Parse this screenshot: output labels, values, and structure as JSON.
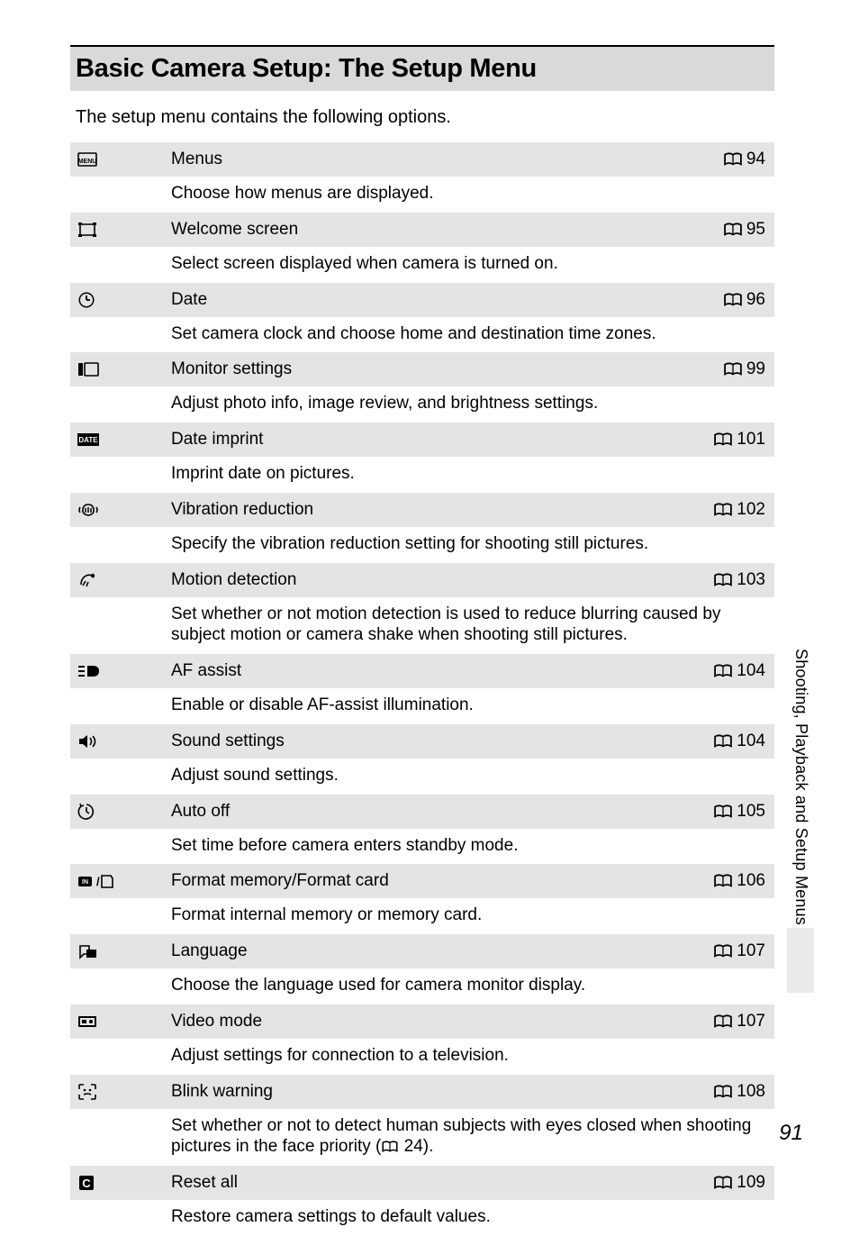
{
  "title": "Basic Camera Setup: The Setup Menu",
  "intro": "The setup menu contains the following options.",
  "side_tab": "Shooting, Playback and Setup Menus",
  "page_number": "91",
  "colors": {
    "header_bg": "#d9d9d9",
    "row_bg": "#e4e4e4",
    "border": "#000000",
    "tab_block": "#eaeaea"
  },
  "items": [
    {
      "icon": "menu",
      "label": "Menus",
      "page": "94",
      "desc": "Choose how menus are displayed."
    },
    {
      "icon": "welcome",
      "label": "Welcome screen",
      "page": "95",
      "desc": "Select screen displayed when camera is turned on."
    },
    {
      "icon": "clock",
      "label": "Date",
      "page": "96",
      "desc": "Set camera clock and choose home and destination time zones."
    },
    {
      "icon": "monitor",
      "label": "Monitor settings",
      "page": "99",
      "desc": "Adjust photo info, image review, and brightness settings."
    },
    {
      "icon": "date",
      "label": "Date imprint",
      "page": "101",
      "desc": "Imprint date on pictures."
    },
    {
      "icon": "vr",
      "label": "Vibration reduction",
      "page": "102",
      "desc": "Specify the vibration reduction setting for shooting still pictures."
    },
    {
      "icon": "motion",
      "label": "Motion detection",
      "page": "103",
      "desc": "Set whether or not motion detection is used to reduce blurring caused by subject motion or camera shake when shooting still pictures."
    },
    {
      "icon": "af",
      "label": "AF assist",
      "page": "104",
      "desc": "Enable or disable AF-assist illumination."
    },
    {
      "icon": "sound",
      "label": "Sound settings",
      "page": "104",
      "desc": "Adjust sound settings."
    },
    {
      "icon": "autooff",
      "label": "Auto off",
      "page": "105",
      "desc": "Set time before camera enters standby mode."
    },
    {
      "icon": "format",
      "label": "Format memory/Format card",
      "page": "106",
      "desc": "Format internal memory or memory card."
    },
    {
      "icon": "language",
      "label": "Language",
      "page": "107",
      "desc": "Choose the language used for camera monitor display."
    },
    {
      "icon": "video",
      "label": "Video mode",
      "page": "107",
      "desc": "Adjust settings for connection to a television."
    },
    {
      "icon": "blink",
      "label": "Blink warning",
      "page": "108",
      "desc_html": true,
      "desc": "Set whether or not to detect human subjects with eyes closed when shooting pictures in the face priority ",
      "desc_ref": "24",
      "desc_suffix": "."
    },
    {
      "icon": "reset",
      "label": "Reset all",
      "page": "109",
      "desc": "Restore camera settings to default values."
    }
  ]
}
